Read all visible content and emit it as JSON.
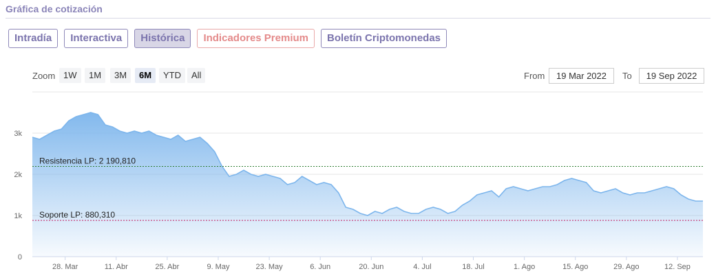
{
  "section_title": "Gráfica de cotización",
  "tabs": [
    {
      "label": "Intradía",
      "active": false,
      "premium": false
    },
    {
      "label": "Interactiva",
      "active": false,
      "premium": false
    },
    {
      "label": "Histórica",
      "active": true,
      "premium": false
    },
    {
      "label": "Indicadores Premium",
      "active": false,
      "premium": true
    },
    {
      "label": "Boletín Criptomonedas",
      "active": false,
      "premium": false
    }
  ],
  "zoom": {
    "label": "Zoom",
    "options": [
      "1W",
      "1M",
      "3M",
      "6M",
      "YTD",
      "All"
    ],
    "selected": "6M"
  },
  "range": {
    "from_label": "From",
    "from_value": "19 Mar 2022",
    "to_label": "To",
    "to_value": "19 Sep 2022"
  },
  "colors": {
    "series_line": "#7cb5ec",
    "resistance_line": "#2e7d32",
    "support_line": "#c2185b",
    "tab_border": "#8e88b9",
    "tab_text": "#7b74ad",
    "premium_text": "#e48a8a"
  },
  "chart_data": {
    "type": "area",
    "x_start": "2022-03-19",
    "x_end": "2022-09-19",
    "x_ticks": [
      {
        "label": "28. Mar",
        "date": "2022-03-28"
      },
      {
        "label": "11. Abr",
        "date": "2022-04-11"
      },
      {
        "label": "25. Abr",
        "date": "2022-04-25"
      },
      {
        "label": "9. May",
        "date": "2022-05-09"
      },
      {
        "label": "23. May",
        "date": "2022-05-23"
      },
      {
        "label": "6. Jun",
        "date": "2022-06-06"
      },
      {
        "label": "20. Jun",
        "date": "2022-06-20"
      },
      {
        "label": "4. Jul",
        "date": "2022-07-04"
      },
      {
        "label": "18. Jul",
        "date": "2022-07-18"
      },
      {
        "label": "1. Ago",
        "date": "2022-08-01"
      },
      {
        "label": "15. Ago",
        "date": "2022-08-15"
      },
      {
        "label": "29. Ago",
        "date": "2022-08-29"
      },
      {
        "label": "12. Sep",
        "date": "2022-09-12"
      }
    ],
    "y_ticks": [
      {
        "label": "0",
        "value": 0
      },
      {
        "label": "1k",
        "value": 1000
      },
      {
        "label": "2k",
        "value": 2000
      },
      {
        "label": "3k",
        "value": 3000
      }
    ],
    "ylim": [
      0,
      4000
    ],
    "grid": true,
    "series": [
      {
        "points": [
          [
            "2022-03-19",
            2900
          ],
          [
            "2022-03-21",
            2850
          ],
          [
            "2022-03-23",
            2950
          ],
          [
            "2022-03-25",
            3050
          ],
          [
            "2022-03-27",
            3100
          ],
          [
            "2022-03-29",
            3300
          ],
          [
            "2022-03-31",
            3400
          ],
          [
            "2022-04-02",
            3450
          ],
          [
            "2022-04-04",
            3500
          ],
          [
            "2022-04-06",
            3450
          ],
          [
            "2022-04-08",
            3200
          ],
          [
            "2022-04-10",
            3150
          ],
          [
            "2022-04-12",
            3050
          ],
          [
            "2022-04-14",
            3000
          ],
          [
            "2022-04-16",
            3050
          ],
          [
            "2022-04-18",
            3000
          ],
          [
            "2022-04-20",
            3050
          ],
          [
            "2022-04-22",
            2950
          ],
          [
            "2022-04-24",
            2900
          ],
          [
            "2022-04-26",
            2850
          ],
          [
            "2022-04-28",
            2950
          ],
          [
            "2022-04-30",
            2800
          ],
          [
            "2022-05-02",
            2850
          ],
          [
            "2022-05-04",
            2900
          ],
          [
            "2022-05-06",
            2750
          ],
          [
            "2022-05-08",
            2550
          ],
          [
            "2022-05-10",
            2200
          ],
          [
            "2022-05-12",
            1950
          ],
          [
            "2022-05-14",
            2000
          ],
          [
            "2022-05-16",
            2100
          ],
          [
            "2022-05-18",
            2000
          ],
          [
            "2022-05-20",
            1950
          ],
          [
            "2022-05-22",
            2000
          ],
          [
            "2022-05-24",
            1950
          ],
          [
            "2022-05-26",
            1900
          ],
          [
            "2022-05-28",
            1750
          ],
          [
            "2022-05-30",
            1800
          ],
          [
            "2022-06-01",
            1950
          ],
          [
            "2022-06-03",
            1850
          ],
          [
            "2022-06-05",
            1750
          ],
          [
            "2022-06-07",
            1800
          ],
          [
            "2022-06-09",
            1750
          ],
          [
            "2022-06-11",
            1550
          ],
          [
            "2022-06-13",
            1200
          ],
          [
            "2022-06-15",
            1150
          ],
          [
            "2022-06-17",
            1050
          ],
          [
            "2022-06-19",
            1000
          ],
          [
            "2022-06-21",
            1100
          ],
          [
            "2022-06-23",
            1050
          ],
          [
            "2022-06-25",
            1150
          ],
          [
            "2022-06-27",
            1200
          ],
          [
            "2022-06-29",
            1100
          ],
          [
            "2022-07-01",
            1050
          ],
          [
            "2022-07-03",
            1050
          ],
          [
            "2022-07-05",
            1150
          ],
          [
            "2022-07-07",
            1200
          ],
          [
            "2022-07-09",
            1150
          ],
          [
            "2022-07-11",
            1050
          ],
          [
            "2022-07-13",
            1100
          ],
          [
            "2022-07-15",
            1250
          ],
          [
            "2022-07-17",
            1350
          ],
          [
            "2022-07-19",
            1500
          ],
          [
            "2022-07-21",
            1550
          ],
          [
            "2022-07-23",
            1600
          ],
          [
            "2022-07-25",
            1450
          ],
          [
            "2022-07-27",
            1650
          ],
          [
            "2022-07-29",
            1700
          ],
          [
            "2022-07-31",
            1650
          ],
          [
            "2022-08-02",
            1600
          ],
          [
            "2022-08-04",
            1650
          ],
          [
            "2022-08-06",
            1700
          ],
          [
            "2022-08-08",
            1700
          ],
          [
            "2022-08-10",
            1750
          ],
          [
            "2022-08-12",
            1850
          ],
          [
            "2022-08-14",
            1900
          ],
          [
            "2022-08-16",
            1850
          ],
          [
            "2022-08-18",
            1800
          ],
          [
            "2022-08-20",
            1600
          ],
          [
            "2022-08-22",
            1550
          ],
          [
            "2022-08-24",
            1600
          ],
          [
            "2022-08-26",
            1650
          ],
          [
            "2022-08-28",
            1550
          ],
          [
            "2022-08-30",
            1500
          ],
          [
            "2022-09-01",
            1550
          ],
          [
            "2022-09-03",
            1550
          ],
          [
            "2022-09-05",
            1600
          ],
          [
            "2022-09-07",
            1650
          ],
          [
            "2022-09-09",
            1700
          ],
          [
            "2022-09-11",
            1650
          ],
          [
            "2022-09-13",
            1500
          ],
          [
            "2022-09-15",
            1400
          ],
          [
            "2022-09-17",
            1350
          ],
          [
            "2022-09-19",
            1350
          ]
        ]
      }
    ],
    "plot_lines": [
      {
        "label": "Resistencia LP: 2 190,810",
        "value": 2190.81,
        "style": "dashed"
      },
      {
        "label": "Soporte LP: 880,310",
        "value": 880.31,
        "style": "dashed"
      }
    ]
  }
}
